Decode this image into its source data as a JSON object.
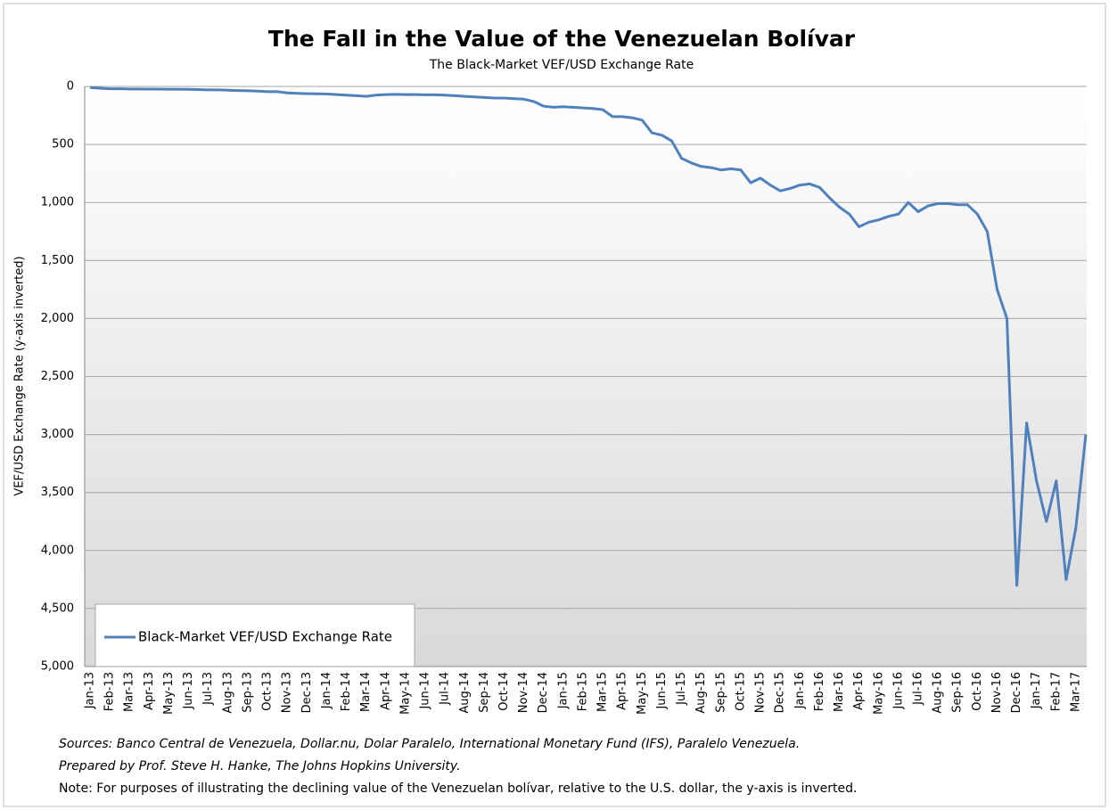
{
  "chart_data": {
    "type": "line",
    "title": "The Fall in the Value of the Venezuelan Bolívar",
    "subtitle": "The Black-Market VEF/USD Exchange Rate",
    "y_label": "VEF/USD Exchange Rate (y-axis inverted)",
    "categories": [
      "Jan-13",
      null,
      "Feb-13",
      null,
      "Mar-13",
      null,
      "Apr-13",
      null,
      "May-13",
      null,
      "Jun-13",
      null,
      "Jul-13",
      null,
      "Aug-13",
      null,
      "Sep-13",
      null,
      "Oct-13",
      null,
      "Nov-13",
      null,
      "Dec-13",
      null,
      "Jan-14",
      null,
      "Feb-14",
      null,
      "Mar-14",
      null,
      "Apr-14",
      null,
      "May-14",
      null,
      "Jun-14",
      null,
      "Jul-14",
      null,
      "Aug-14",
      null,
      "Sep-14",
      null,
      "Oct-14",
      null,
      "Nov-14",
      null,
      "Dec-14",
      null,
      "Jan-15",
      null,
      "Feb-15",
      null,
      "Mar-15",
      null,
      "Apr-15",
      null,
      "May-15",
      null,
      "Jun-15",
      null,
      "Jul-15",
      null,
      "Aug-15",
      null,
      "Sep-15",
      null,
      "Oct-15",
      null,
      "Nov-15",
      null,
      "Dec-15",
      null,
      "Jan-16",
      null,
      "Feb-16",
      null,
      "Mar-16",
      null,
      "Apr-16",
      null,
      "May-16",
      null,
      "Jun-16",
      null,
      "Jul-16",
      null,
      "Aug-16",
      null,
      "Sep-16",
      null,
      "Oct-16",
      null,
      "Nov-16",
      null,
      "Dec-16",
      null,
      "Jan-17",
      null,
      "Feb-17",
      null,
      "Mar-17",
      null
    ],
    "series": [
      {
        "name": "Black-Market VEF/USD Exchange Rate",
        "color": "#4f81bd",
        "values": [
          10,
          15,
          20,
          20,
          22,
          22,
          23,
          23,
          24,
          24,
          25,
          27,
          30,
          30,
          32,
          35,
          38,
          40,
          45,
          45,
          55,
          60,
          62,
          64,
          65,
          70,
          75,
          80,
          85,
          75,
          70,
          68,
          70,
          70,
          72,
          72,
          75,
          80,
          85,
          90,
          95,
          100,
          100,
          105,
          110,
          130,
          170,
          180,
          175,
          180,
          185,
          190,
          200,
          260,
          260,
          270,
          290,
          400,
          420,
          470,
          620,
          660,
          690,
          700,
          720,
          710,
          720,
          830,
          790,
          850,
          900,
          880,
          850,
          840,
          870,
          960,
          1040,
          1100,
          1210,
          1170,
          1150,
          1120,
          1100,
          1000,
          1080,
          1030,
          1010,
          1010,
          1020,
          1020,
          1100,
          1250,
          1750,
          2000,
          4300,
          2900,
          3400,
          3750,
          3400,
          4250,
          3800,
          3000
        ]
      }
    ],
    "ylim": [
      0,
      5000
    ],
    "y_inverted": true,
    "yticks": [
      0,
      500,
      {
        "value": 1000,
        "label": "1,000"
      },
      {
        "value": 1500,
        "label": "1,500"
      },
      {
        "value": 2000,
        "label": "2,000"
      },
      {
        "value": 2500,
        "label": "2,500"
      },
      {
        "value": 3000,
        "label": "3,000"
      },
      {
        "value": 3500,
        "label": "3,500"
      },
      {
        "value": 4000,
        "label": "4,000"
      },
      {
        "value": 4500,
        "label": "4,500"
      },
      {
        "value": 5000,
        "label": "5,000"
      }
    ],
    "grid": true,
    "legend": "lower left",
    "notes": [
      "Sources: Banco Central de Venezuela, Dollar.nu, Dolar Paralelo, International Monetary Fund (IFS), Paralelo Venezuela.",
      "Prepared by Prof. Steve H. Hanke, The Johns Hopkins University.",
      "Note: For purposes of illustrating the declining value of the Venezuelan bolívar, relative to the U.S. dollar, the y-axis is inverted."
    ]
  }
}
